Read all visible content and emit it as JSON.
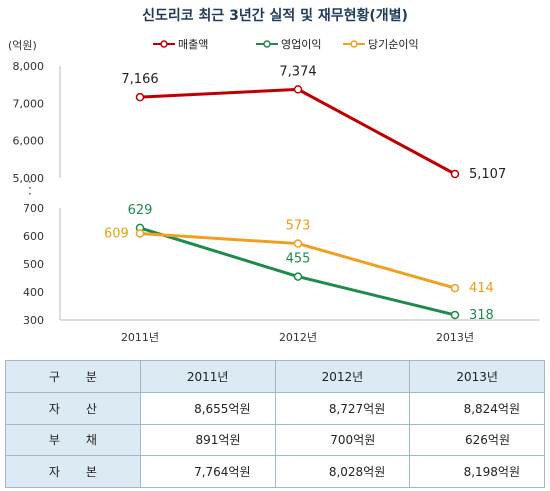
{
  "chart_data": {
    "type": "line",
    "title": "신도리코 최근 3년간 실적 및 재무현황(개별)",
    "unit": "(억원)",
    "categories": [
      "2011년",
      "2012년",
      "2013년"
    ],
    "upper_axis": {
      "ylim": [
        5000,
        8000
      ],
      "ticks": [
        "8,000",
        "7,000",
        "6,000",
        "5,000"
      ]
    },
    "lower_axis": {
      "ylim": [
        300,
        700
      ],
      "ticks": [
        "700",
        "600",
        "500",
        "400",
        "300"
      ]
    },
    "series": [
      {
        "name": "매출액",
        "axis": "upper",
        "color": "#c00000",
        "values": [
          7166,
          7374,
          5107
        ],
        "labels": [
          "7,166",
          "7,374",
          "5,107"
        ],
        "label_color": "#222222"
      },
      {
        "name": "영업이익",
        "axis": "lower",
        "color": "#1e8a4c",
        "values": [
          629,
          455,
          318
        ],
        "labels": [
          "629",
          "455",
          "318"
        ],
        "label_color": "#1e8a4c"
      },
      {
        "name": "당기순이익",
        "axis": "lower",
        "color": "#f0a020",
        "values": [
          609,
          573,
          414
        ],
        "labels": [
          "609",
          "573",
          "414"
        ],
        "label_color": "#e6a11a"
      }
    ]
  },
  "table": {
    "header": [
      "구분",
      "2011년",
      "2012년",
      "2013년"
    ],
    "rows": [
      {
        "label": "자산",
        "values": [
          "8,655억원",
          "8,727억원",
          "8,824억원"
        ]
      },
      {
        "label": "부채",
        "values": [
          "891억원",
          "700억원",
          "626억원"
        ]
      },
      {
        "label": "자본",
        "values": [
          "7,764억원",
          "8,028억원",
          "8,198억원"
        ]
      }
    ]
  }
}
